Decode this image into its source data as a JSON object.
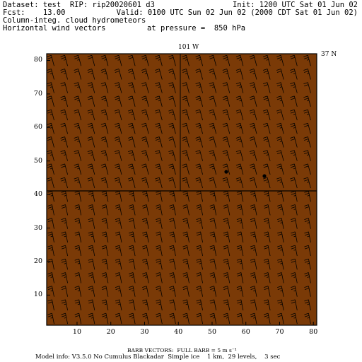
{
  "header": {
    "dataset": "Dataset: test  RIP: rip20020601 d3",
    "init": "Init: 1200 UTC Sat 01 Jun 02",
    "fcst": "Fcst:    13.00",
    "valid": "Valid: 0100 UTC Sun 02 Jun 02 (2000 CDT Sat 01 Jun 02)",
    "field1": "Column-integ. cloud hydrometeors",
    "field2": "Horizontal wind vectors",
    "pressure": "at pressure =  850 hPa"
  },
  "map": {
    "top_label": "101 W",
    "right_label": "37 N",
    "fill_color": "#7a3a07",
    "line_color": "#000000",
    "y_ticks": [
      "80",
      "70",
      "60",
      "50",
      "40",
      "30",
      "20",
      "10"
    ],
    "x_ticks": [
      "10",
      "20",
      "30",
      "40",
      "50",
      "60",
      "70",
      "80"
    ],
    "y_range": [
      1,
      82
    ],
    "x_range": [
      1,
      81
    ]
  },
  "footer": {
    "barb_note": "BARB VECTORS:  FULL BARB = 5 m s⁻¹",
    "model_info": "Model info: V3.5.0 No Cumulus Blackadar  Simple ice    1 km,  29 levels,    3 sec"
  }
}
